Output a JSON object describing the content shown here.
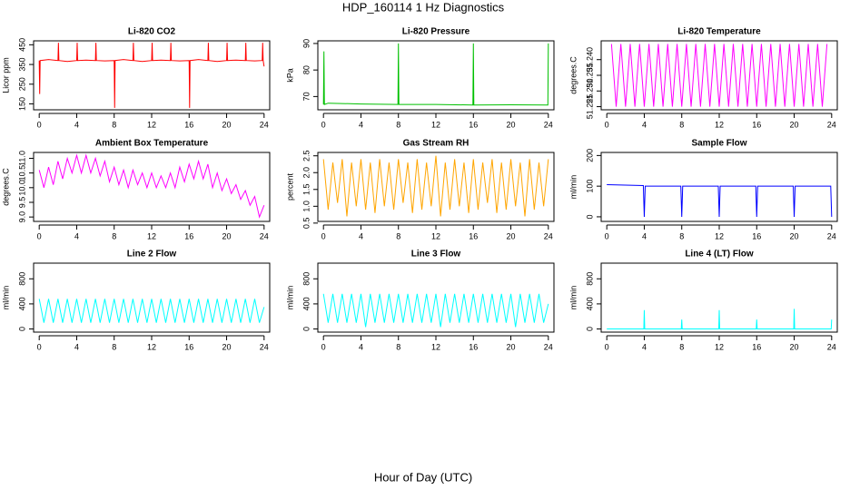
{
  "title": "HDP_160114  1 Hz Diagnostics",
  "xlabel": "Hour of Day (UTC)",
  "chart_data": [
    {
      "type": "line",
      "title": "Li-820 CO2",
      "ylabel": "Licor ppm",
      "color": "#ff0000",
      "xlim": [
        -0.6,
        24.6
      ],
      "xticks": [
        0,
        4,
        8,
        12,
        16,
        20,
        24
      ],
      "ylim": [
        120,
        470
      ],
      "yticks": [
        150,
        250,
        350,
        450
      ],
      "x": [
        0,
        0.05,
        0.1,
        1,
        2,
        2.05,
        2.1,
        3,
        4,
        4.05,
        4.1,
        5,
        6,
        6.05,
        6.1,
        7,
        8,
        8.05,
        8.1,
        9,
        10,
        10.05,
        10.1,
        11,
        12,
        12.05,
        12.1,
        13,
        14,
        14.05,
        14.1,
        15,
        16,
        16.05,
        16.1,
        17,
        18,
        18.05,
        18.1,
        19,
        20,
        20.05,
        20.1,
        21,
        22,
        22.05,
        22.1,
        23,
        23.8,
        23.85,
        23.9,
        24
      ],
      "values": [
        370,
        200,
        370,
        375,
        370,
        460,
        370,
        365,
        370,
        460,
        370,
        372,
        370,
        460,
        370,
        368,
        370,
        130,
        370,
        375,
        370,
        460,
        370,
        365,
        370,
        460,
        370,
        372,
        370,
        460,
        370,
        368,
        370,
        130,
        370,
        375,
        370,
        460,
        370,
        365,
        370,
        460,
        370,
        372,
        370,
        460,
        370,
        368,
        370,
        460,
        370,
        340
      ]
    },
    {
      "type": "line",
      "title": "Li-820 Pressure",
      "ylabel": "kPa",
      "color": "#00c000",
      "xlim": [
        -0.6,
        24.6
      ],
      "xticks": [
        0,
        4,
        8,
        12,
        16,
        20,
        24
      ],
      "ylim": [
        65,
        91
      ],
      "yticks": [
        70,
        80,
        90
      ],
      "x": [
        0,
        0.05,
        0.1,
        0.5,
        4,
        7.95,
        8,
        8.05,
        12,
        15.95,
        16,
        16.05,
        20,
        23.9,
        23.95,
        24
      ],
      "values": [
        67,
        87,
        67,
        67.5,
        67.2,
        67,
        90,
        67,
        67,
        66.8,
        90,
        66.8,
        66.9,
        66.8,
        66.8,
        90
      ]
    },
    {
      "type": "line",
      "title": "Li-820 Temperature",
      "ylabel": "degrees.C",
      "color": "#ff00ff",
      "xlim": [
        -0.6,
        24.6
      ],
      "xticks": [
        0,
        4,
        8,
        12,
        16,
        20,
        24
      ],
      "ylim": [
        51.224,
        51.246
      ],
      "yticks": [
        51.225,
        {
          "value": 51.23,
          "label": "51.230"
        },
        51.235,
        {
          "value": 51.24,
          "label": "51.240"
        }
      ],
      "x": [
        0.5,
        1,
        1.5,
        2,
        2.5,
        3,
        3.5,
        4,
        4.5,
        5,
        5.5,
        6,
        6.5,
        7,
        7.5,
        8,
        8.5,
        9,
        9.5,
        10,
        10.5,
        11,
        11.5,
        12,
        12.5,
        13,
        13.5,
        14,
        14.5,
        15,
        15.5,
        16,
        16.5,
        17,
        17.5,
        18,
        18.5,
        19,
        19.5,
        20,
        20.5,
        21,
        21.5,
        22,
        22.5,
        23,
        23.5
      ],
      "values": [
        51.245,
        51.225,
        51.245,
        51.225,
        51.245,
        51.225,
        51.245,
        51.225,
        51.245,
        51.225,
        51.245,
        51.225,
        51.245,
        51.225,
        51.245,
        51.225,
        51.245,
        51.225,
        51.245,
        51.225,
        51.245,
        51.225,
        51.245,
        51.225,
        51.245,
        51.225,
        51.245,
        51.225,
        51.245,
        51.225,
        51.245,
        51.225,
        51.245,
        51.225,
        51.245,
        51.225,
        51.245,
        51.225,
        51.245,
        51.225,
        51.245,
        51.225,
        51.245,
        51.225,
        51.245,
        51.225,
        51.245
      ]
    },
    {
      "type": "line",
      "title": "Ambient Box Temperature",
      "ylabel": "degrees.C",
      "color": "#ff00ff",
      "xlim": [
        -0.6,
        24.6
      ],
      "xticks": [
        0,
        4,
        8,
        12,
        16,
        20,
        24
      ],
      "ylim": [
        8.85,
        11.2
      ],
      "yticks": [
        {
          "value": 9,
          "label": "9.0"
        },
        9.5,
        {
          "value": 10,
          "label": "10.0"
        },
        10.5,
        {
          "value": 11,
          "label": "11.0"
        }
      ],
      "x": [
        0,
        0.5,
        1,
        1.5,
        2,
        2.5,
        3,
        3.5,
        4,
        4.5,
        5,
        5.5,
        6,
        6.5,
        7,
        7.5,
        8,
        8.5,
        9,
        9.5,
        10,
        10.5,
        11,
        11.5,
        12,
        12.5,
        13,
        13.5,
        14,
        14.5,
        15,
        15.5,
        16,
        16.5,
        17,
        17.5,
        18,
        18.5,
        19,
        19.5,
        20,
        20.5,
        21,
        21.5,
        22,
        22.5,
        23,
        23.5,
        24
      ],
      "values": [
        10.6,
        10.0,
        10.7,
        10.1,
        10.9,
        10.3,
        11.0,
        10.5,
        11.1,
        10.5,
        11.1,
        10.5,
        11.0,
        10.4,
        10.9,
        10.2,
        10.7,
        10.1,
        10.6,
        10.0,
        10.6,
        10.1,
        10.5,
        10.0,
        10.5,
        10.0,
        10.4,
        10.0,
        10.5,
        10.0,
        10.7,
        10.2,
        10.8,
        10.3,
        10.9,
        10.3,
        10.8,
        10.0,
        10.5,
        9.9,
        10.3,
        9.8,
        10.1,
        9.6,
        9.9,
        9.4,
        9.7,
        9.0,
        9.4
      ]
    },
    {
      "type": "line",
      "title": "Gas Stream RH",
      "ylabel": "percent",
      "color": "#ffa500",
      "xlim": [
        -0.6,
        24.6
      ],
      "xticks": [
        0,
        4,
        8,
        12,
        16,
        20,
        24
      ],
      "ylim": [
        0.55,
        2.6
      ],
      "yticks": [
        0.5,
        {
          "value": 1,
          "label": "1.0"
        },
        1.5,
        {
          "value": 2,
          "label": "2.0"
        },
        2.5
      ],
      "x": [
        0,
        0.5,
        1,
        1.5,
        2,
        2.5,
        3,
        3.5,
        4,
        4.5,
        5,
        5.5,
        6,
        6.5,
        7,
        7.5,
        8,
        8.5,
        9,
        9.5,
        10,
        10.5,
        11,
        11.5,
        12,
        12.5,
        13,
        13.5,
        14,
        14.5,
        15,
        15.5,
        16,
        16.5,
        17,
        17.5,
        18,
        18.5,
        19,
        19.5,
        20,
        20.5,
        21,
        21.5,
        22,
        22.5,
        23,
        23.5,
        24
      ],
      "values": [
        2.4,
        0.9,
        2.3,
        1.1,
        2.4,
        0.7,
        2.3,
        1.0,
        2.4,
        0.9,
        2.3,
        0.8,
        2.4,
        1.0,
        2.3,
        0.9,
        2.4,
        1.1,
        2.3,
        0.8,
        2.4,
        0.9,
        2.3,
        1.0,
        2.5,
        0.7,
        2.3,
        0.9,
        2.4,
        1.0,
        2.3,
        0.8,
        2.4,
        0.9,
        2.3,
        1.1,
        2.4,
        0.8,
        2.3,
        0.9,
        2.4,
        1.0,
        2.3,
        0.7,
        2.4,
        0.9,
        2.3,
        1.0,
        2.4
      ]
    },
    {
      "type": "line",
      "title": "Sample Flow",
      "ylabel": "ml/min",
      "color": "#0000ff",
      "xlim": [
        -0.6,
        24.6
      ],
      "xticks": [
        0,
        4,
        8,
        12,
        16,
        20,
        24
      ],
      "ylim": [
        -15,
        210
      ],
      "yticks": [
        0,
        100,
        200
      ],
      "x": [
        0,
        3.9,
        4,
        4.1,
        7.9,
        8,
        8.1,
        11.9,
        12,
        12.1,
        15.9,
        16,
        16.1,
        19.9,
        20,
        20.1,
        23.9,
        24
      ],
      "values": [
        105,
        102,
        0,
        100,
        100,
        0,
        100,
        100,
        0,
        100,
        100,
        0,
        100,
        100,
        0,
        100,
        100,
        0
      ]
    },
    {
      "type": "line",
      "title": "Line 2 Flow",
      "ylabel": "ml/min",
      "color": "#00ffff",
      "xlim": [
        -0.6,
        24.6
      ],
      "xticks": [
        0,
        4,
        8,
        12,
        16,
        20,
        24
      ],
      "ylim": [
        -50,
        1050
      ],
      "yticks": [
        0,
        400,
        800
      ],
      "x": [
        0,
        0.5,
        1,
        1.5,
        2,
        2.5,
        3,
        3.5,
        4,
        4.5,
        5,
        5.5,
        6,
        6.5,
        7,
        7.5,
        8,
        8.5,
        9,
        9.5,
        10,
        10.5,
        11,
        11.5,
        12,
        12.5,
        13,
        13.5,
        14,
        14.5,
        15,
        15.5,
        16,
        16.5,
        17,
        17.5,
        18,
        18.5,
        19,
        19.5,
        20,
        20.5,
        21,
        21.5,
        22,
        22.5,
        23,
        23.5,
        24
      ],
      "values": [
        480,
        100,
        480,
        100,
        480,
        100,
        480,
        100,
        480,
        100,
        480,
        100,
        480,
        100,
        480,
        100,
        480,
        100,
        480,
        100,
        480,
        100,
        480,
        100,
        480,
        100,
        480,
        100,
        480,
        100,
        480,
        100,
        480,
        100,
        480,
        100,
        480,
        100,
        480,
        100,
        480,
        100,
        480,
        100,
        480,
        100,
        480,
        100,
        350
      ]
    },
    {
      "type": "line",
      "title": "Line 3 Flow",
      "ylabel": "ml/min",
      "color": "#00ffff",
      "xlim": [
        -0.6,
        24.6
      ],
      "xticks": [
        0,
        4,
        8,
        12,
        16,
        20,
        24
      ],
      "ylim": [
        -50,
        1050
      ],
      "yticks": [
        0,
        400,
        800
      ],
      "x": [
        0,
        0.5,
        1,
        1.5,
        2,
        2.5,
        3,
        3.5,
        4,
        4.5,
        5,
        5.5,
        6,
        6.5,
        7,
        7.5,
        8,
        8.5,
        9,
        9.5,
        10,
        10.5,
        11,
        11.5,
        12,
        12.5,
        13,
        13.5,
        14,
        14.5,
        15,
        15.5,
        16,
        16.5,
        17,
        17.5,
        18,
        18.5,
        19,
        19.5,
        20,
        20.5,
        21,
        21.5,
        22,
        22.5,
        23,
        23.5,
        24
      ],
      "values": [
        560,
        100,
        560,
        100,
        560,
        100,
        560,
        100,
        560,
        30,
        560,
        100,
        560,
        100,
        560,
        100,
        560,
        100,
        560,
        100,
        560,
        100,
        560,
        100,
        560,
        30,
        560,
        100,
        560,
        100,
        560,
        100,
        560,
        100,
        560,
        100,
        560,
        100,
        560,
        100,
        560,
        30,
        560,
        100,
        560,
        100,
        560,
        100,
        400
      ]
    },
    {
      "type": "line",
      "title": "Line 4 (LT) Flow",
      "ylabel": "ml/min",
      "color": "#00ffff",
      "xlim": [
        -0.6,
        24.6
      ],
      "xticks": [
        0,
        4,
        8,
        12,
        16,
        20,
        24
      ],
      "ylim": [
        -50,
        1050
      ],
      "yticks": [
        0,
        400,
        800
      ],
      "x": [
        0,
        3.95,
        4,
        4.05,
        7.95,
        8,
        8.05,
        11.95,
        12,
        12.05,
        15.95,
        16,
        16.05,
        19.95,
        20,
        20.05,
        23.95,
        24
      ],
      "values": [
        0,
        0,
        300,
        0,
        0,
        150,
        0,
        0,
        300,
        0,
        0,
        150,
        0,
        0,
        320,
        0,
        0,
        150
      ]
    }
  ]
}
